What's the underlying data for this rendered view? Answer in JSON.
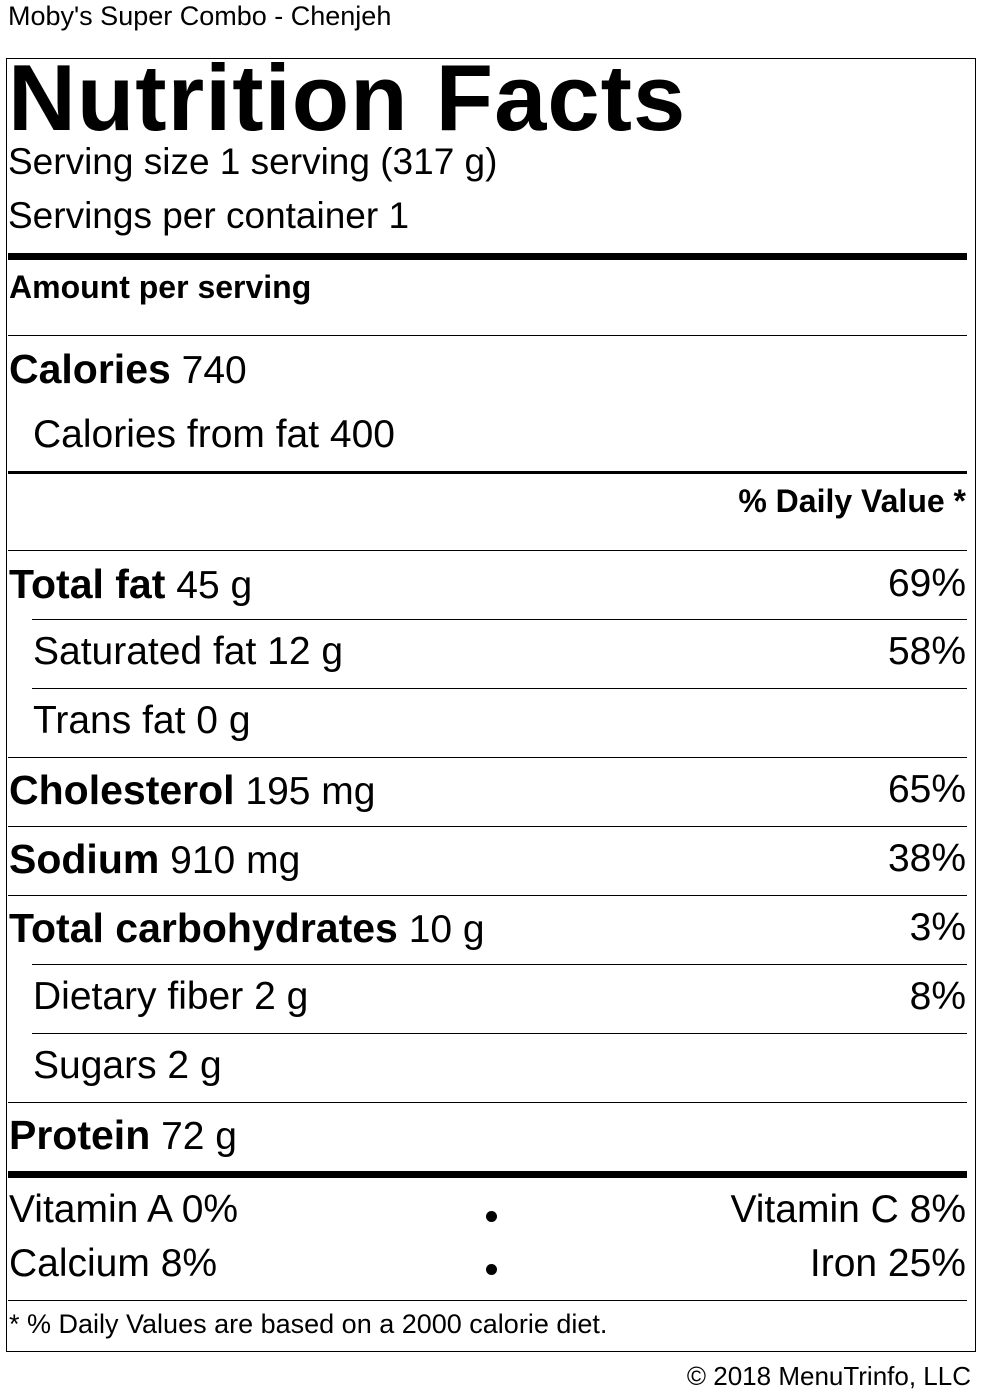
{
  "product_name": "Moby's Super Combo - Chenjeh",
  "label": {
    "title": "Nutrition Facts",
    "serving_size": "Serving size 1 serving (317 g)",
    "servings_per_container": "Servings per container 1",
    "amount_per_serving": "Amount per serving",
    "calories_label": "Calories",
    "calories_value": "740",
    "calories_from_fat": "Calories from fat 400",
    "daily_value_header": "% Daily Value *",
    "nutrients": [
      {
        "name": "Total fat",
        "amount": "45 g",
        "dv": "69%"
      },
      {
        "name": "Saturated fat",
        "amount": "12 g",
        "dv": "58%"
      },
      {
        "name": "Trans fat",
        "amount": "0 g",
        "dv": ""
      },
      {
        "name": "Cholesterol",
        "amount": "195 mg",
        "dv": "65%"
      },
      {
        "name": "Sodium",
        "amount": "910 mg",
        "dv": "38%"
      },
      {
        "name": "Total carbohydrates",
        "amount": "10 g",
        "dv": "3%"
      },
      {
        "name": "Dietary fiber",
        "amount": "2 g",
        "dv": "8%"
      },
      {
        "name": "Sugars",
        "amount": "2 g",
        "dv": ""
      },
      {
        "name": "Protein",
        "amount": "72 g",
        "dv": ""
      }
    ],
    "vitamins": {
      "vitamin_a": "Vitamin A 0%",
      "vitamin_c": "Vitamin C 8%",
      "calcium": "Calcium 8%",
      "iron": "Iron 25%"
    },
    "footnote": "* % Daily Values are based on a 2000 calorie diet."
  },
  "copyright": "© 2018 MenuTrinfo, LLC"
}
